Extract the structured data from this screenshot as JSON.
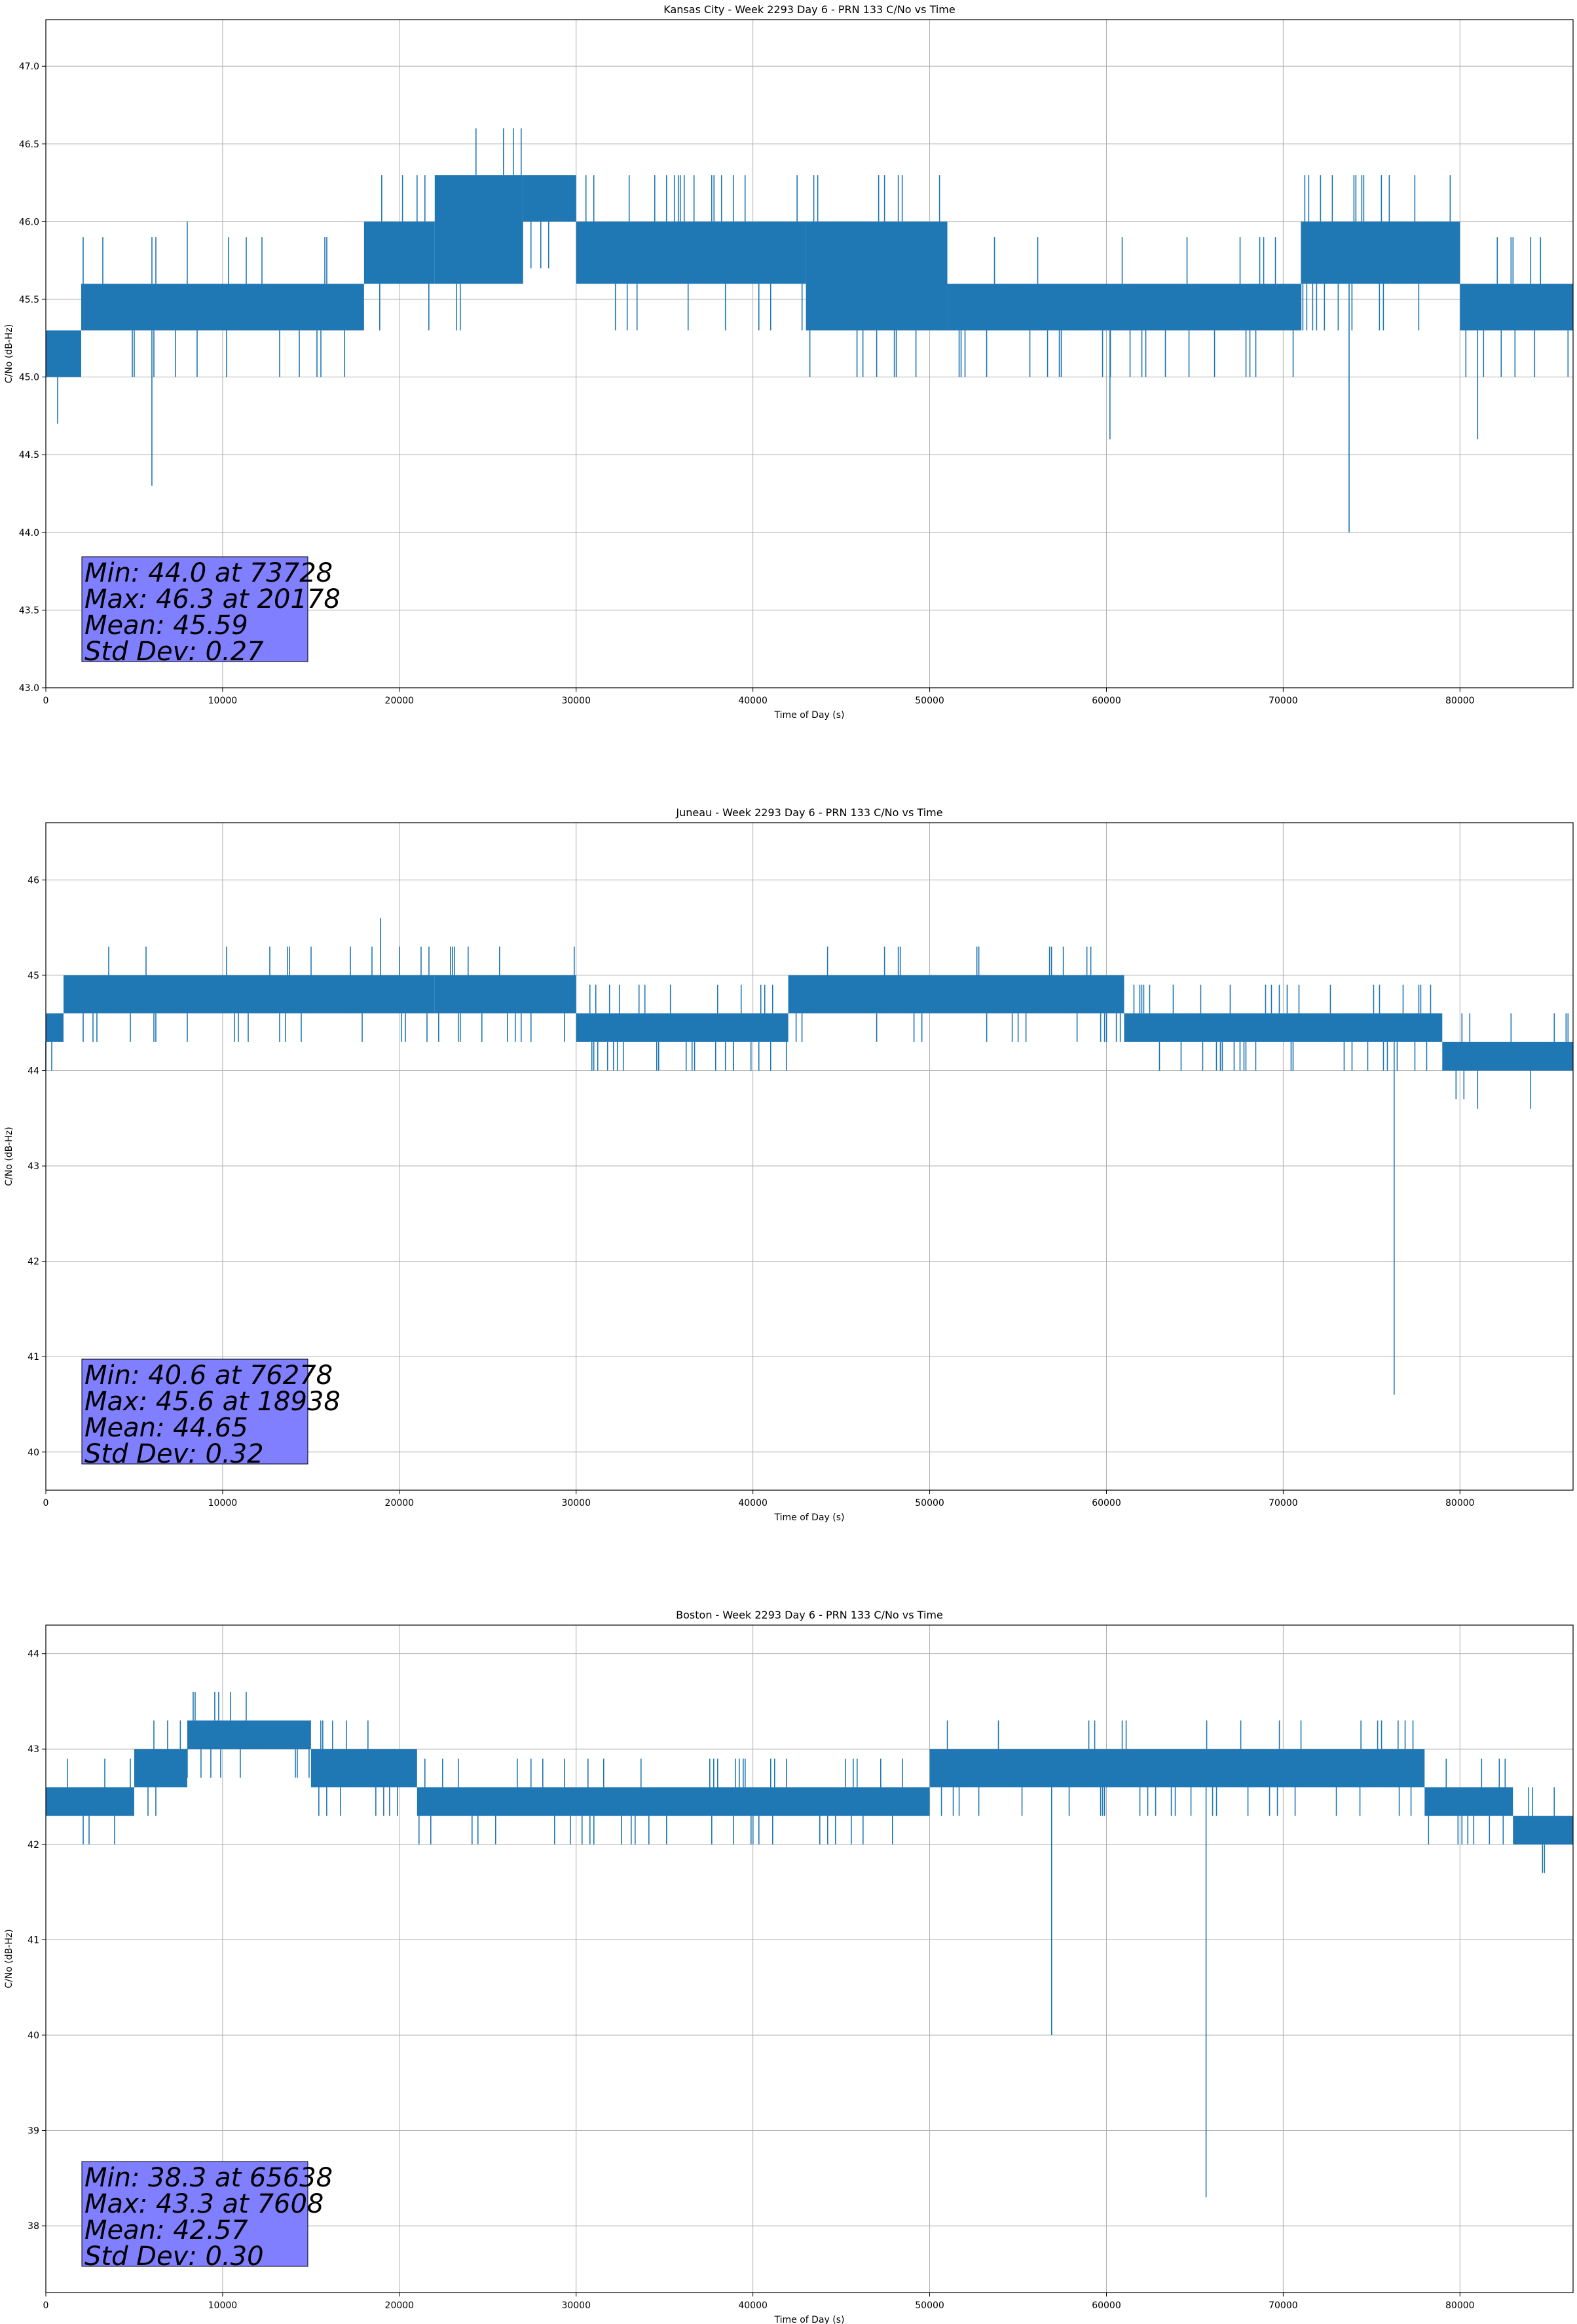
{
  "colors": {
    "series": "#1f77b4",
    "grid": "#b0b0b0",
    "stats_box": "#7f7fff"
  },
  "chart_data": [
    {
      "type": "line",
      "title": "Kansas City - Week 2293 Day 6 - PRN 133 C/No vs Time",
      "xlabel": "Time of Day (s)",
      "ylabel": "C/No (dB-Hz)",
      "xlim": [
        0,
        86399
      ],
      "ylim": [
        43.0,
        47.3
      ],
      "xticks": [
        0,
        10000,
        20000,
        30000,
        40000,
        50000,
        60000,
        70000,
        80000
      ],
      "yticks": [
        43.0,
        43.5,
        44.0,
        44.5,
        45.0,
        45.5,
        46.0,
        46.5,
        47.0
      ],
      "ytick_labels": [
        "43.0",
        "43.5",
        "44.0",
        "44.5",
        "45.0",
        "45.5",
        "46.0",
        "46.5",
        "47.0"
      ],
      "grid": true,
      "stats": [
        "Min: 44.0 at 73728",
        "Max: 46.3 at 20178",
        "Mean: 45.59",
        "Std Dev: 0.27"
      ],
      "bands": [
        {
          "x": [
            0,
            2000
          ],
          "y": [
            45.0,
            45.3
          ]
        },
        {
          "x": [
            2000,
            18000
          ],
          "y": [
            45.3,
            45.6
          ]
        },
        {
          "x": [
            18000,
            22000
          ],
          "y": [
            45.6,
            46.0
          ]
        },
        {
          "x": [
            22000,
            27000
          ],
          "y": [
            45.6,
            46.3
          ]
        },
        {
          "x": [
            27000,
            30000
          ],
          "y": [
            46.0,
            46.3
          ]
        },
        {
          "x": [
            30000,
            43000
          ],
          "y": [
            45.6,
            46.0
          ]
        },
        {
          "x": [
            43000,
            51000
          ],
          "y": [
            45.3,
            46.0
          ]
        },
        {
          "x": [
            51000,
            71000
          ],
          "y": [
            45.3,
            45.6
          ]
        },
        {
          "x": [
            71000,
            80000
          ],
          "y": [
            45.6,
            46.0
          ]
        },
        {
          "x": [
            80000,
            86399
          ],
          "y": [
            45.3,
            45.6
          ]
        }
      ],
      "spikes": [
        {
          "x": 6000,
          "y": 44.3
        },
        {
          "x": 8000,
          "y": 46.0
        },
        {
          "x": 60200,
          "y": 44.6
        },
        {
          "x": 73728,
          "y": 44.0
        },
        {
          "x": 81000,
          "y": 44.6
        },
        {
          "x": 20178,
          "y": 46.3
        },
        {
          "x": 37800,
          "y": 46.3
        },
        {
          "x": 42500,
          "y": 46.3
        }
      ]
    },
    {
      "type": "line",
      "title": "Juneau - Week 2293 Day 6 - PRN 133 C/No vs Time",
      "xlabel": "Time of Day (s)",
      "ylabel": "C/No (dB-Hz)",
      "xlim": [
        0,
        86399
      ],
      "ylim": [
        39.6,
        46.6
      ],
      "xticks": [
        0,
        10000,
        20000,
        30000,
        40000,
        50000,
        60000,
        70000,
        80000
      ],
      "yticks": [
        40,
        41,
        42,
        43,
        44,
        45,
        46
      ],
      "ytick_labels": [
        "40",
        "41",
        "42",
        "43",
        "44",
        "45",
        "46"
      ],
      "grid": true,
      "stats": [
        "Min: 40.6 at 76278",
        "Max: 45.6 at 18938",
        "Mean: 44.65",
        "Std Dev: 0.32"
      ],
      "bands": [
        {
          "x": [
            0,
            1000
          ],
          "y": [
            44.3,
            44.6
          ]
        },
        {
          "x": [
            1000,
            22000
          ],
          "y": [
            44.6,
            45.0
          ]
        },
        {
          "x": [
            22000,
            30000
          ],
          "y": [
            44.6,
            45.0
          ]
        },
        {
          "x": [
            30000,
            42000
          ],
          "y": [
            44.3,
            44.6
          ]
        },
        {
          "x": [
            42000,
            61000
          ],
          "y": [
            44.6,
            45.0
          ]
        },
        {
          "x": [
            61000,
            79000
          ],
          "y": [
            44.3,
            44.6
          ]
        },
        {
          "x": [
            79000,
            86399
          ],
          "y": [
            44.0,
            44.3
          ]
        }
      ],
      "spikes": [
        {
          "x": 18938,
          "y": 45.6
        },
        {
          "x": 36700,
          "y": 44.0
        },
        {
          "x": 38900,
          "y": 44.0
        },
        {
          "x": 76278,
          "y": 40.6
        },
        {
          "x": 81000,
          "y": 43.6
        },
        {
          "x": 84000,
          "y": 43.6
        }
      ]
    },
    {
      "type": "line",
      "title": "Boston - Week 2293 Day 6 - PRN 133 C/No vs Time",
      "xlabel": "Time of Day (s)",
      "ylabel": "C/No (dB-Hz)",
      "xlim": [
        0,
        86399
      ],
      "ylim": [
        37.3,
        44.3
      ],
      "xticks": [
        0,
        10000,
        20000,
        30000,
        40000,
        50000,
        60000,
        70000,
        80000
      ],
      "yticks": [
        38,
        39,
        40,
        41,
        42,
        43,
        44
      ],
      "ytick_labels": [
        "38",
        "39",
        "40",
        "41",
        "42",
        "43",
        "44"
      ],
      "grid": true,
      "stats": [
        "Min: 38.3 at 65638",
        "Max: 43.3 at 7608",
        "Mean: 42.57",
        "Std Dev: 0.30"
      ],
      "bands": [
        {
          "x": [
            0,
            5000
          ],
          "y": [
            42.3,
            42.6
          ]
        },
        {
          "x": [
            5000,
            8000
          ],
          "y": [
            42.6,
            43.0
          ]
        },
        {
          "x": [
            8000,
            15000
          ],
          "y": [
            43.0,
            43.3
          ]
        },
        {
          "x": [
            15000,
            21000
          ],
          "y": [
            42.6,
            43.0
          ]
        },
        {
          "x": [
            21000,
            50000
          ],
          "y": [
            42.3,
            42.6
          ]
        },
        {
          "x": [
            50000,
            78000
          ],
          "y": [
            42.6,
            43.0
          ]
        },
        {
          "x": [
            78000,
            83000
          ],
          "y": [
            42.3,
            42.6
          ]
        },
        {
          "x": [
            83000,
            86399
          ],
          "y": [
            42.0,
            42.3
          ]
        }
      ],
      "spikes": [
        {
          "x": 56900,
          "y": 40.0
        },
        {
          "x": 65638,
          "y": 38.3
        },
        {
          "x": 7608,
          "y": 43.3
        },
        {
          "x": 67600,
          "y": 43.3
        },
        {
          "x": 74400,
          "y": 43.3
        },
        {
          "x": 76500,
          "y": 43.3
        }
      ]
    }
  ]
}
